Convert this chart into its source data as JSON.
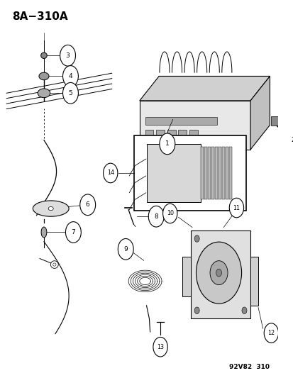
{
  "title": "8A−310A",
  "footer": "92V82  310",
  "bg_color": "#ffffff",
  "line_color": "#000000"
}
